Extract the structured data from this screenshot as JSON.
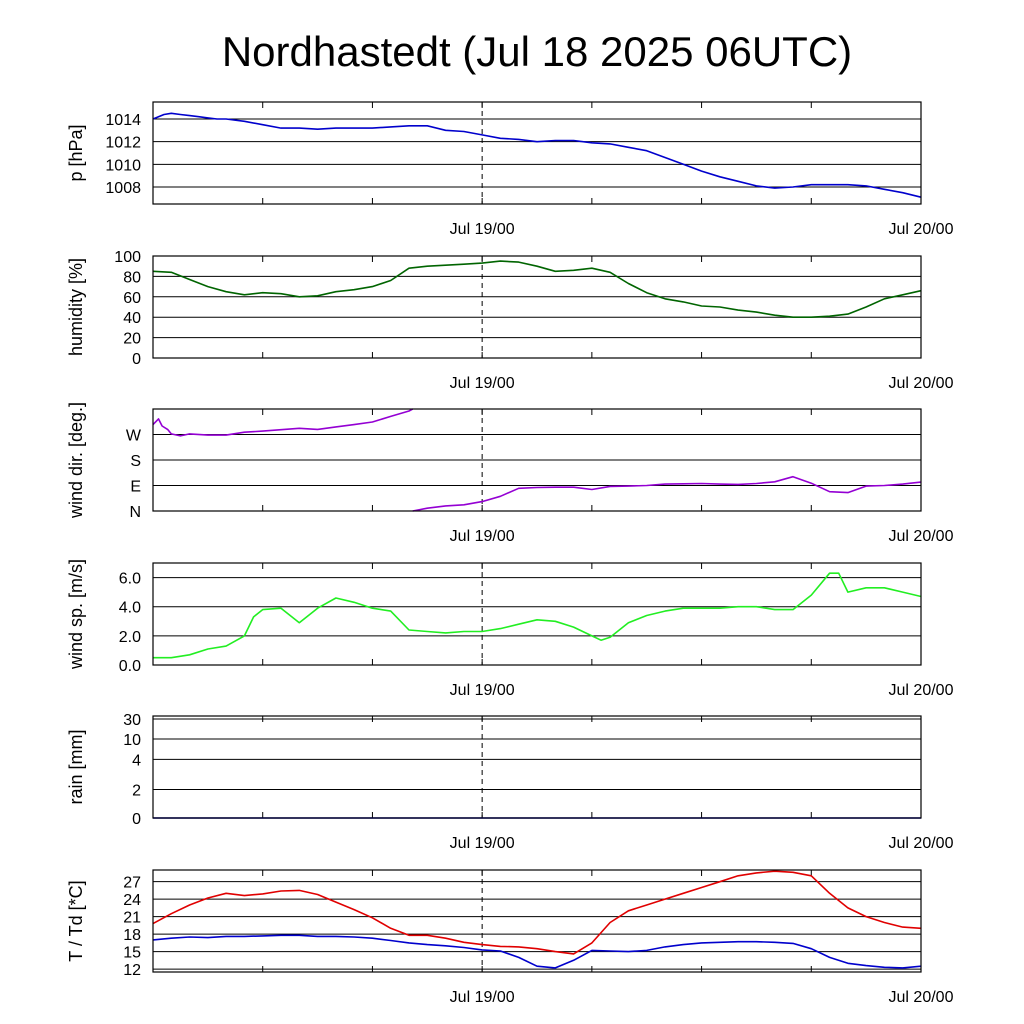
{
  "title": "Nordhastedt (Jul 18 2025 06UTC)",
  "x_tick_labels": [
    "Jul 19/00",
    "Jul 20/00"
  ],
  "colors": {
    "pressure": "#0000cc",
    "humidity": "#006400",
    "wind_dir": "#9400d3",
    "wind_speed": "#22ee22",
    "rain": "#0000cc",
    "temperature": "#e00000",
    "dewpoint": "#0000cc",
    "grid": "#000000"
  },
  "chart_data": [
    {
      "type": "line",
      "ylabel": "p [hPa]",
      "x_unit": "hours since Jul 18 06UTC",
      "xlim": [
        0,
        42
      ],
      "ylim": [
        1006.5,
        1015.5
      ],
      "yticks": [
        1008,
        1010,
        1012,
        1014
      ],
      "ytick_labels": [
        "1008",
        "1010",
        "1012",
        "1014"
      ],
      "series": [
        {
          "color_key": "pressure",
          "x": [
            0,
            0.3,
            0.6,
            1,
            1.5,
            2,
            2.5,
            3,
            3.5,
            4,
            5,
            6,
            7,
            8,
            9,
            10,
            11,
            12,
            13,
            14,
            15,
            16,
            17,
            18,
            19,
            20,
            21,
            22,
            23,
            24,
            25,
            26,
            27,
            28,
            29,
            30,
            31,
            32,
            33,
            34,
            35,
            36,
            37,
            38,
            39,
            40,
            41,
            42
          ],
          "y": [
            1014.0,
            1014.2,
            1014.4,
            1014.5,
            1014.4,
            1014.3,
            1014.2,
            1014.1,
            1014.0,
            1014.0,
            1013.8,
            1013.5,
            1013.2,
            1013.2,
            1013.1,
            1013.2,
            1013.2,
            1013.2,
            1013.3,
            1013.4,
            1013.4,
            1013.0,
            1012.9,
            1012.6,
            1012.3,
            1012.2,
            1012.0,
            1012.1,
            1012.1,
            1011.9,
            1011.8,
            1011.5,
            1011.2,
            1010.6,
            1010.0,
            1009.4,
            1008.9,
            1008.5,
            1008.1,
            1007.9,
            1008.0,
            1008.2,
            1008.2,
            1008.2,
            1008.1,
            1007.8,
            1007.5,
            1007.1
          ]
        }
      ]
    },
    {
      "type": "line",
      "ylabel": "humidity [%]",
      "xlim": [
        0,
        42
      ],
      "ylim": [
        0,
        100
      ],
      "yticks": [
        0,
        20,
        40,
        60,
        80,
        100
      ],
      "ytick_labels": [
        "0",
        "20",
        "40",
        "60",
        "80",
        "100"
      ],
      "series": [
        {
          "color_key": "humidity",
          "x": [
            0,
            1,
            2,
            3,
            4,
            5,
            6,
            7,
            8,
            9,
            10,
            11,
            12,
            13,
            14,
            15,
            16,
            17,
            18,
            19,
            20,
            21,
            22,
            23,
            24,
            25,
            26,
            27,
            28,
            29,
            30,
            31,
            32,
            33,
            34,
            35,
            36,
            37,
            38,
            39,
            40,
            41,
            42
          ],
          "y": [
            85,
            84,
            77,
            70,
            65,
            62,
            64,
            63,
            60,
            61,
            65,
            67,
            70,
            76,
            88,
            90,
            91,
            92,
            93,
            95,
            94,
            90,
            85,
            86,
            88,
            84,
            73,
            64,
            58,
            55,
            51,
            50,
            47,
            45,
            42,
            40,
            40,
            41,
            43,
            50,
            58,
            62,
            66
          ]
        }
      ]
    },
    {
      "type": "line",
      "ylabel": "wind dir. [deg.]",
      "xlim": [
        0,
        42
      ],
      "ylim": [
        0,
        360
      ],
      "yticks": [
        0,
        90,
        180,
        270
      ],
      "ytick_labels": [
        "N",
        "E",
        "S",
        "W"
      ],
      "series": [
        {
          "color_key": "wind_dir",
          "segments": [
            {
              "x": [
                0,
                0.3,
                0.5,
                0.8,
                1,
                1.5,
                2,
                3,
                4,
                5,
                6,
                7,
                8,
                9,
                10,
                11,
                12,
                13,
                14,
                14.2
              ],
              "y": [
                305,
                325,
                300,
                288,
                272,
                265,
                272,
                268,
                268,
                278,
                282,
                287,
                292,
                288,
                297,
                305,
                314,
                334,
                353,
                360
              ]
            },
            {
              "x": [
                14.2,
                15,
                16,
                17,
                18,
                19,
                20,
                21,
                22,
                23,
                24,
                25,
                26,
                27,
                28,
                29,
                30,
                31,
                32,
                33,
                34,
                35,
                36,
                37,
                38,
                39,
                40,
                41,
                42
              ],
              "y": [
                0,
                10,
                18,
                22,
                33,
                52,
                80,
                83,
                84,
                84,
                76,
                87,
                88,
                90,
                95,
                96,
                97,
                95,
                94,
                97,
                103,
                121,
                98,
                68,
                65,
                88,
                90,
                95,
                102
              ]
            }
          ]
        }
      ]
    },
    {
      "type": "line",
      "ylabel": "wind sp. [m/s]",
      "xlim": [
        0,
        42
      ],
      "ylim": [
        0,
        7
      ],
      "yticks": [
        0,
        2,
        4,
        6
      ],
      "ytick_labels": [
        "0.0",
        "2.0",
        "4.0",
        "6.0"
      ],
      "series": [
        {
          "color_key": "wind_speed",
          "x": [
            0,
            1,
            2,
            3,
            4,
            5,
            5.5,
            6,
            7,
            8,
            9,
            10,
            11,
            12,
            13,
            14,
            15,
            16,
            17,
            18,
            19,
            20,
            21,
            22,
            23,
            24,
            24.5,
            25,
            26,
            27,
            28,
            29,
            30,
            31,
            32,
            33,
            34,
            35,
            36,
            37,
            37.5,
            38,
            39,
            40,
            41,
            42
          ],
          "y": [
            0.5,
            0.5,
            0.7,
            1.1,
            1.3,
            2.0,
            3.3,
            3.8,
            3.9,
            2.9,
            3.9,
            4.6,
            4.3,
            3.9,
            3.7,
            2.4,
            2.3,
            2.2,
            2.3,
            2.3,
            2.5,
            2.8,
            3.1,
            3.0,
            2.6,
            2.0,
            1.7,
            1.9,
            2.9,
            3.4,
            3.7,
            3.9,
            3.9,
            3.9,
            4.0,
            4.0,
            3.8,
            3.8,
            4.8,
            6.3,
            6.3,
            5.0,
            5.3,
            5.3,
            5.0,
            4.7
          ]
        }
      ]
    },
    {
      "type": "line",
      "ylabel": "rain [mm]",
      "xlim": [
        0,
        42
      ],
      "ylim": [
        0,
        33
      ],
      "scale": "nonlinear",
      "yticks": [
        0,
        2,
        4,
        10,
        30
      ],
      "ytick_labels": [
        "0",
        "2",
        "4",
        "10",
        "30"
      ],
      "series": [
        {
          "color_key": "rain",
          "x": [
            0,
            42
          ],
          "y": [
            0,
            0
          ]
        }
      ]
    },
    {
      "type": "line",
      "ylabel": "T / Td [*C]",
      "xlim": [
        0,
        42
      ],
      "ylim": [
        11.5,
        29
      ],
      "yticks": [
        12,
        15,
        18,
        21,
        24,
        27
      ],
      "ytick_labels": [
        "12",
        "15",
        "18",
        "21",
        "24",
        "27"
      ],
      "series": [
        {
          "color_key": "temperature",
          "x": [
            0,
            1,
            2,
            3,
            4,
            5,
            6,
            7,
            8,
            9,
            10,
            11,
            12,
            13,
            14,
            15,
            16,
            17,
            18,
            19,
            20,
            21,
            22,
            23,
            24,
            25,
            26,
            27,
            28,
            29,
            30,
            31,
            32,
            33,
            34,
            35,
            36,
            37,
            38,
            39,
            40,
            41,
            42
          ],
          "y": [
            19.8,
            21.5,
            23.0,
            24.2,
            25.0,
            24.6,
            24.9,
            25.4,
            25.5,
            24.8,
            23.5,
            22.2,
            20.8,
            19.0,
            17.8,
            17.8,
            17.3,
            16.6,
            16.2,
            15.9,
            15.8,
            15.5,
            15.0,
            14.6,
            16.5,
            20.0,
            22.0,
            23.0,
            24.0,
            25.0,
            26.0,
            27.0,
            28.0,
            28.5,
            28.8,
            28.6,
            28.0,
            25.0,
            22.5,
            21.0,
            20.0,
            19.2,
            19.0
          ]
        },
        {
          "color_key": "dewpoint",
          "x": [
            0,
            1,
            2,
            3,
            4,
            5,
            6,
            7,
            8,
            9,
            10,
            11,
            12,
            13,
            14,
            15,
            16,
            17,
            18,
            19,
            20,
            21,
            22,
            23,
            24,
            25,
            26,
            27,
            28,
            29,
            30,
            31,
            32,
            33,
            34,
            35,
            36,
            37,
            38,
            39,
            40,
            41,
            42
          ],
          "y": [
            17.0,
            17.3,
            17.5,
            17.4,
            17.6,
            17.6,
            17.7,
            17.8,
            17.8,
            17.6,
            17.6,
            17.5,
            17.3,
            16.9,
            16.5,
            16.2,
            16.0,
            15.7,
            15.3,
            15.1,
            14.0,
            12.5,
            12.2,
            13.5,
            15.2,
            15.1,
            15.0,
            15.2,
            15.8,
            16.2,
            16.5,
            16.6,
            16.7,
            16.7,
            16.6,
            16.4,
            15.5,
            14.0,
            13.0,
            12.6,
            12.3,
            12.2,
            12.5
          ]
        }
      ]
    }
  ]
}
